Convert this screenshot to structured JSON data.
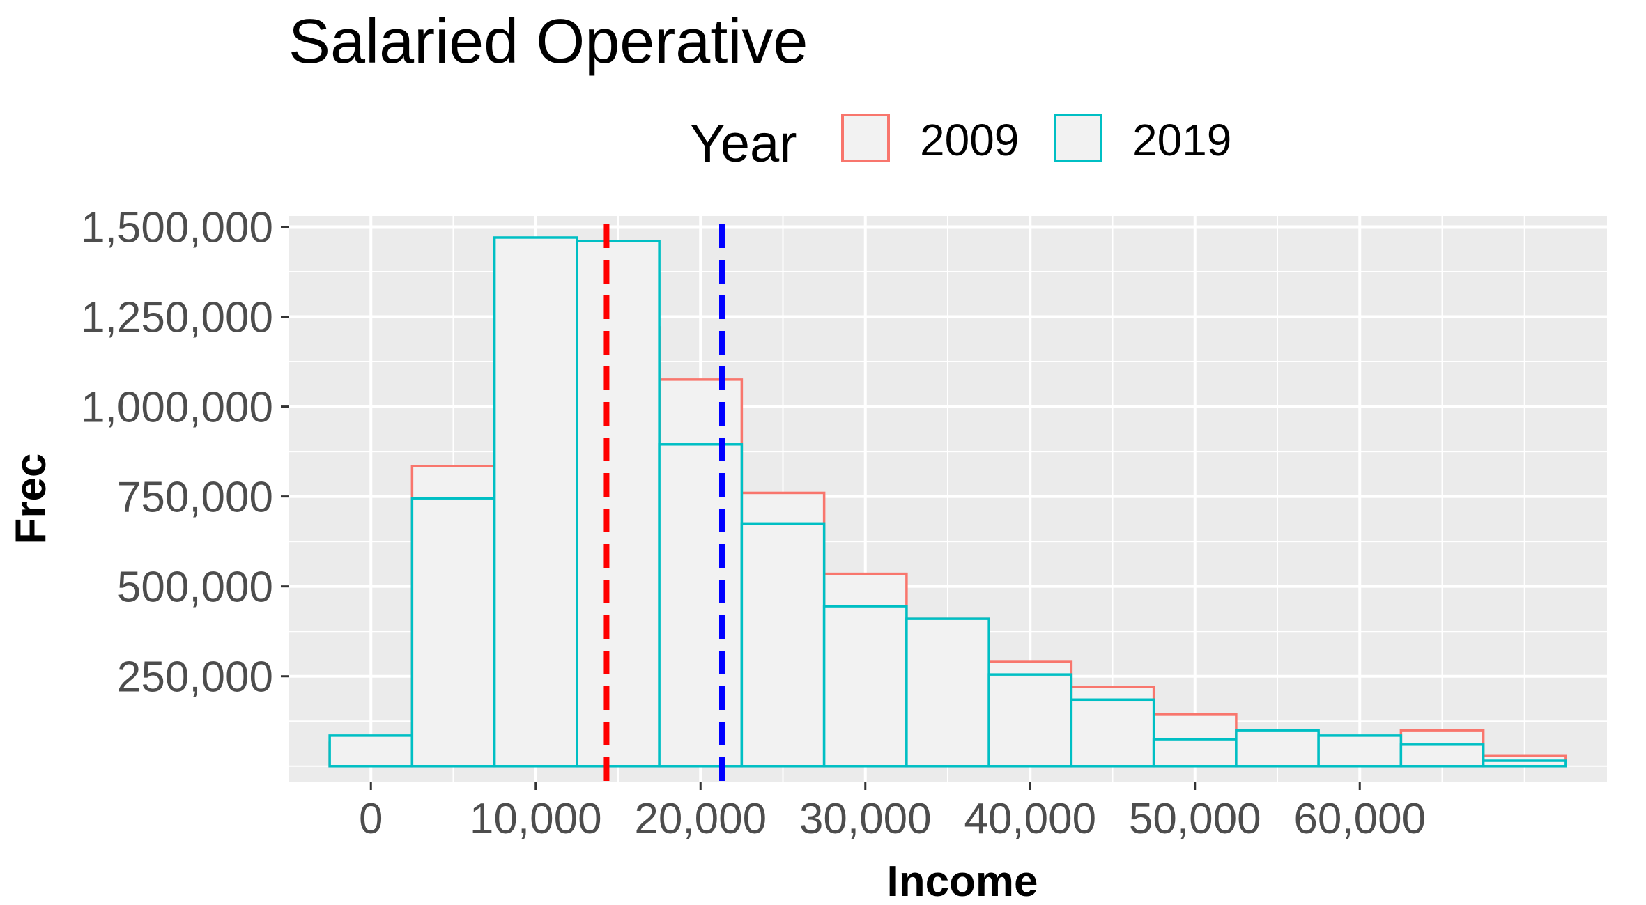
{
  "chart_data": {
    "type": "bar",
    "title": "Salaried Operative",
    "xlabel": "Income",
    "ylabel": "Frec",
    "legend": {
      "title": "Year",
      "position": "top"
    },
    "xlim": [
      -5000,
      75000
    ],
    "ylim": [
      -45000,
      1530000
    ],
    "bin_width": 5000,
    "bin_centers": [
      0,
      5000,
      10000,
      15000,
      20000,
      25000,
      30000,
      35000,
      40000,
      45000,
      50000,
      55000,
      60000,
      65000,
      70000
    ],
    "x_ticks": [
      0,
      10000,
      20000,
      30000,
      40000,
      50000,
      60000
    ],
    "x_tick_labels": [
      "0",
      "10,000",
      "20,000",
      "30,000",
      "40,000",
      "50,000",
      "60,000"
    ],
    "y_ticks": [
      250000,
      500000,
      750000,
      1000000,
      1250000,
      1500000
    ],
    "y_tick_labels": [
      "250,000",
      "500,000",
      "750,000",
      "1,000,000",
      "1,250,000",
      "1,500,000"
    ],
    "grid": true,
    "fill": "#f2f2f2",
    "series": [
      {
        "name": "2009",
        "color": "#f8766d",
        "values": [
          65000,
          835000,
          1150000,
          1220000,
          1075000,
          760000,
          535000,
          410000,
          290000,
          220000,
          145000,
          90000,
          75000,
          100000,
          30000
        ]
      },
      {
        "name": "2019",
        "color": "#00bfc4",
        "values": [
          85000,
          745000,
          1470000,
          1460000,
          895000,
          675000,
          445000,
          410000,
          255000,
          185000,
          75000,
          100000,
          85000,
          60000,
          15000
        ]
      }
    ],
    "reference_lines": [
      {
        "x": 14300,
        "color": "#ff0000",
        "style": "dashed"
      },
      {
        "x": 21300,
        "color": "#0000ff",
        "style": "dashed"
      }
    ]
  }
}
